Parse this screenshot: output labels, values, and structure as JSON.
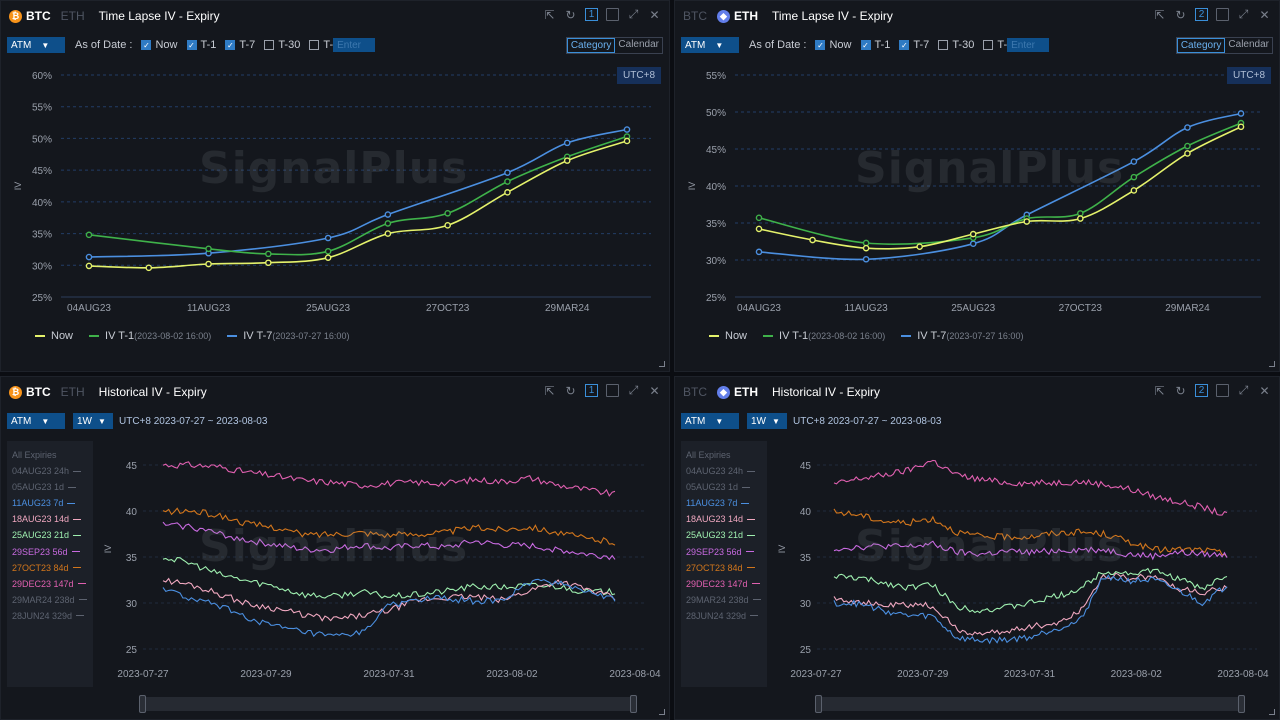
{
  "colors": {
    "now": "#e4f26b",
    "t1": "#3fb24a",
    "t7": "#4b8fe0",
    "accent": "#0e4f8a",
    "grid": "#223d66",
    "panel": "#14171d"
  },
  "panels": [
    {
      "coin_active": "BTC",
      "coin_inactive": "ETH",
      "active_coin_first": true,
      "title": "Time Lapse IV - Expiry",
      "slot": "1",
      "atm": "ATM",
      "as_of": "As of Date :",
      "checks": [
        {
          "label": "Now",
          "checked": true
        },
        {
          "label": "T-1",
          "checked": true
        },
        {
          "label": "T-7",
          "checked": true
        },
        {
          "label": "T-30",
          "checked": false
        },
        {
          "label": "T-",
          "checked": false
        }
      ],
      "enter_placeholder": "Enter",
      "tabs": [
        "Category",
        "Calendar"
      ],
      "active_tab": "Category",
      "utc": "UTC+8",
      "watermark": "SignalPlus",
      "legend": [
        {
          "label": "Now",
          "sub": ""
        },
        {
          "label": "IV T-1",
          "sub": "(2023-08-02 16:00)"
        },
        {
          "label": "IV T-7",
          "sub": "(2023-07-27 16:00)"
        }
      ]
    },
    {
      "coin_active": "ETH",
      "coin_inactive": "BTC",
      "active_coin_first": false,
      "title": "Time Lapse IV - Expiry",
      "slot": "2",
      "atm": "ATM",
      "as_of": "As of Date :",
      "checks": [
        {
          "label": "Now",
          "checked": true
        },
        {
          "label": "T-1",
          "checked": true
        },
        {
          "label": "T-7",
          "checked": true
        },
        {
          "label": "T-30",
          "checked": false
        },
        {
          "label": "T-",
          "checked": false
        }
      ],
      "enter_placeholder": "Enter",
      "tabs": [
        "Category",
        "Calendar"
      ],
      "active_tab": "Category",
      "utc": "UTC+8",
      "watermark": "SignalPlus",
      "legend": [
        {
          "label": "Now",
          "sub": ""
        },
        {
          "label": "IV T-1",
          "sub": "(2023-08-02 16:00)"
        },
        {
          "label": "IV T-7",
          "sub": "(2023-07-27 16:00)"
        }
      ]
    },
    {
      "coin_active": "BTC",
      "coin_inactive": "ETH",
      "active_coin_first": true,
      "title": "Historical IV - Expiry",
      "slot": "1",
      "atm": "ATM",
      "period": "1W",
      "range": "UTC+8 2023-07-27 ~ 2023-08-03",
      "watermark": "SignalPlus",
      "expiries_header": "All Expiries",
      "expiries": [
        {
          "label": "04AUG23 24h",
          "color": "#5d6370"
        },
        {
          "label": "05AUG23 1d",
          "color": "#5d6370"
        },
        {
          "label": "11AUG23 7d",
          "color": "#4b8fe0"
        },
        {
          "label": "18AUG23 14d",
          "color": "#f0a8c0"
        },
        {
          "label": "25AUG23 21d",
          "color": "#9ff0b0"
        },
        {
          "label": "29SEP23 56d",
          "color": "#c86ae0"
        },
        {
          "label": "27OCT23 84d",
          "color": "#d2761c"
        },
        {
          "label": "29DEC23 147d",
          "color": "#e060b0"
        },
        {
          "label": "29MAR24 238d",
          "color": "#5d6370"
        },
        {
          "label": "28JUN24 329d",
          "color": "#5d6370"
        }
      ]
    },
    {
      "coin_active": "ETH",
      "coin_inactive": "BTC",
      "active_coin_first": false,
      "title": "Historical IV - Expiry",
      "slot": "2",
      "atm": "ATM",
      "period": "1W",
      "range": "UTC+8 2023-07-27 ~ 2023-08-03",
      "watermark": "SignalPlus",
      "expiries_header": "All Expiries",
      "expiries": [
        {
          "label": "04AUG23 24h",
          "color": "#5d6370"
        },
        {
          "label": "05AUG23 1d",
          "color": "#5d6370"
        },
        {
          "label": "11AUG23 7d",
          "color": "#4b8fe0"
        },
        {
          "label": "18AUG23 14d",
          "color": "#f0a8c0"
        },
        {
          "label": "25AUG23 21d",
          "color": "#9ff0b0"
        },
        {
          "label": "29SEP23 56d",
          "color": "#c86ae0"
        },
        {
          "label": "27OCT23 84d",
          "color": "#d2761c"
        },
        {
          "label": "29DEC23 147d",
          "color": "#e060b0"
        },
        {
          "label": "29MAR24 238d",
          "color": "#5d6370"
        },
        {
          "label": "28JUN24 329d",
          "color": "#5d6370"
        }
      ]
    }
  ],
  "chart_data": [
    {
      "type": "line",
      "ylabel": "IV",
      "ylim": [
        25,
        60
      ],
      "yticks": [
        "25%",
        "30%",
        "35%",
        "40%",
        "45%",
        "50%",
        "55%",
        "60%"
      ],
      "categories": [
        "04AUG23",
        "05AUG23",
        "11AUG23",
        "18AUG23",
        "25AUG23",
        "29SEP23",
        "27OCT23",
        "29DEC23",
        "29MAR24",
        "28JUN24"
      ],
      "xticks": [
        "04AUG23",
        "11AUG23",
        "25AUG23",
        "27OCT23",
        "29MAR24"
      ],
      "grid": true,
      "legend": "bottom-left",
      "series": [
        {
          "name": "Now",
          "values": [
            29.9,
            29.6,
            30.2,
            30.4,
            31.2,
            35.0,
            36.3,
            41.5,
            46.5,
            49.6
          ]
        },
        {
          "name": "IV T-1",
          "values": [
            34.8,
            null,
            32.6,
            31.8,
            32.2,
            36.6,
            38.2,
            43.2,
            47.1,
            50.3
          ]
        },
        {
          "name": "IV T-7",
          "values": [
            31.3,
            null,
            31.9,
            null,
            34.3,
            38.0,
            null,
            44.6,
            49.3,
            51.4
          ]
        }
      ]
    },
    {
      "type": "line",
      "ylabel": "IV",
      "ylim": [
        25,
        55
      ],
      "yticks": [
        "25%",
        "30%",
        "35%",
        "40%",
        "45%",
        "50%",
        "55%"
      ],
      "categories": [
        "04AUG23",
        "05AUG23",
        "11AUG23",
        "18AUG23",
        "25AUG23",
        "29SEP23",
        "27OCT23",
        "29DEC23",
        "29MAR24",
        "28JUN24"
      ],
      "xticks": [
        "04AUG23",
        "11AUG23",
        "25AUG23",
        "27OCT23",
        "29MAR24"
      ],
      "grid": true,
      "legend": "bottom-left",
      "series": [
        {
          "name": "Now",
          "values": [
            34.2,
            32.7,
            31.6,
            31.8,
            33.5,
            35.2,
            35.6,
            39.4,
            44.4,
            48.0
          ]
        },
        {
          "name": "IV T-1",
          "values": [
            35.7,
            null,
            32.3,
            null,
            33.0,
            35.6,
            36.3,
            41.2,
            45.4,
            48.5
          ]
        },
        {
          "name": "IV T-7",
          "values": [
            31.1,
            null,
            30.1,
            null,
            32.2,
            36.1,
            null,
            43.3,
            47.9,
            49.8
          ]
        }
      ]
    },
    {
      "type": "line",
      "ylabel": "IV",
      "ylim": [
        25,
        45
      ],
      "yticks": [
        "25",
        "30",
        "35",
        "40",
        "45"
      ],
      "xticks": [
        "2023-07-27",
        "2023-07-29",
        "2023-07-31",
        "2023-08-02",
        "2023-08-04"
      ],
      "grid": true,
      "series": [
        {
          "name": "29DEC23 147d",
          "values": [
            45.0,
            45.0,
            44.8,
            44.2,
            43.8,
            43.3,
            43.1,
            42.8,
            43.0,
            43.1,
            43.0,
            43.4,
            43.2,
            43.6,
            42.8,
            42.3,
            41.8
          ]
        },
        {
          "name": "27OCT23 84d",
          "values": [
            39.9,
            40.0,
            39.5,
            38.6,
            38.2,
            37.4,
            37.5,
            37.7,
            37.4,
            37.5,
            37.7,
            38.2,
            38.0,
            38.3,
            37.6,
            37.0,
            36.6
          ]
        },
        {
          "name": "29SEP23 56d",
          "values": [
            38.5,
            38.3,
            37.5,
            36.8,
            36.3,
            35.8,
            35.8,
            36.3,
            35.9,
            36.3,
            36.0,
            36.7,
            36.3,
            36.2,
            35.8,
            35.3,
            35.0
          ]
        },
        {
          "name": "25AUG23 21d",
          "values": [
            35.0,
            34.3,
            33.1,
            32.4,
            31.8,
            30.9,
            30.7,
            31.2,
            30.7,
            30.9,
            31.3,
            31.8,
            31.7,
            31.9,
            31.8,
            31.2,
            31.2
          ]
        },
        {
          "name": "18AUG23 14d",
          "values": [
            32.5,
            32.0,
            31.0,
            29.9,
            29.4,
            28.7,
            28.2,
            28.6,
            29.2,
            30.3,
            30.6,
            30.7,
            30.3,
            31.4,
            32.4,
            31.5,
            30.5
          ]
        },
        {
          "name": "11AUG23 7d",
          "values": [
            31.6,
            30.4,
            29.7,
            28.4,
            27.4,
            26.8,
            26.3,
            26.7,
            29.7,
            30.4,
            30.5,
            30.2,
            30.2,
            32.3,
            32.3,
            31.3,
            30.3
          ]
        }
      ]
    },
    {
      "type": "line",
      "ylabel": "IV",
      "ylim": [
        25,
        45
      ],
      "yticks": [
        "25",
        "30",
        "35",
        "40",
        "45"
      ],
      "xticks": [
        "2023-07-27",
        "2023-07-29",
        "2023-07-31",
        "2023-08-02",
        "2023-08-04"
      ],
      "grid": true,
      "series": [
        {
          "name": "29DEC23 147d",
          "values": [
            42.9,
            43.5,
            43.9,
            44.4,
            45.5,
            43.9,
            43.4,
            43.1,
            43.0,
            43.1,
            43.2,
            42.9,
            42.4,
            41.6,
            41.0,
            40.4,
            39.5
          ]
        },
        {
          "name": "27OCT23 84d",
          "values": [
            39.9,
            39.6,
            38.9,
            38.7,
            39.2,
            37.7,
            37.2,
            37.2,
            37.2,
            37.6,
            37.7,
            37.5,
            36.7,
            35.8,
            35.8,
            35.8,
            35.3
          ]
        },
        {
          "name": "29SEP23 56d",
          "values": [
            35.9,
            36.1,
            36.2,
            36.1,
            36.4,
            35.5,
            35.3,
            35.6,
            35.5,
            35.7,
            35.8,
            35.8,
            35.3,
            35.1,
            35.5,
            35.3,
            35.2
          ]
        },
        {
          "name": "25AUG23 21d",
          "values": [
            32.9,
            32.7,
            32.2,
            31.7,
            32.0,
            29.6,
            29.2,
            29.5,
            30.0,
            30.7,
            31.5,
            33.5,
            33.2,
            33.5,
            32.7,
            31.5,
            33.1
          ]
        },
        {
          "name": "18AUG23 14d",
          "values": [
            30.6,
            30.1,
            29.7,
            29.8,
            29.7,
            27.1,
            26.6,
            26.9,
            27.5,
            27.7,
            29.1,
            33.1,
            32.7,
            32.9,
            31.6,
            31.0,
            31.8
          ]
        },
        {
          "name": "11AUG23 7d",
          "values": [
            30.0,
            29.9,
            29.2,
            28.6,
            28.6,
            26.2,
            25.9,
            26.0,
            26.3,
            27.2,
            28.0,
            33.0,
            32.4,
            32.5,
            31.4,
            30.0,
            31.9
          ]
        }
      ]
    }
  ]
}
